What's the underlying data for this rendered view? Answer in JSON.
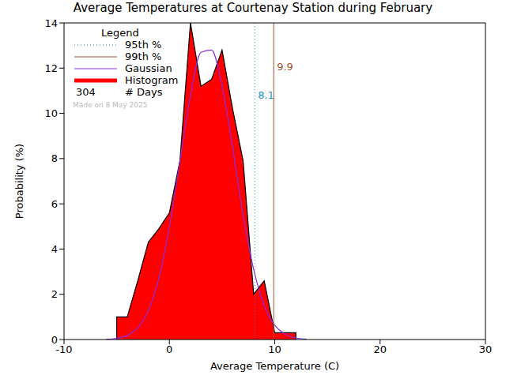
{
  "chart_data": {
    "type": "histogram",
    "title": "Average Temperatures at Courtenay Station during February",
    "x_label": "Average Temperature (C)",
    "y_label": "Probability (%)",
    "bins": [
      -5,
      -4,
      -3,
      -2,
      -1,
      0,
      1,
      2,
      3,
      4,
      5,
      6,
      7,
      8,
      9,
      10,
      11,
      12
    ],
    "counts": [
      1.0,
      1.0,
      2.6,
      4.3,
      4.9,
      5.6,
      7.9,
      14.0,
      11.2,
      11.5,
      12.8,
      10.2,
      7.9,
      2.0,
      2.6,
      0.3,
      0.3
    ],
    "name": "Histogram",
    "color": "#ff0000",
    "gaussian": {
      "name": "Gaussian",
      "color": "#8a2be2",
      "x": [
        -6,
        -5,
        -4,
        -3,
        -2,
        -1,
        0,
        1,
        2,
        3,
        4,
        5,
        6,
        7,
        8,
        9,
        10,
        11,
        12,
        13
      ],
      "values": [
        0.01,
        0.05,
        0.18,
        0.52,
        1.28,
        2.72,
        4.98,
        7.9,
        10.8,
        12.7,
        12.8,
        11.2,
        8.5,
        5.5,
        3.1,
        1.5,
        0.63,
        0.23,
        0.07,
        0.02
      ]
    },
    "percentiles": [
      {
        "name": "95th %",
        "value": 8.1,
        "color": "#1e90c8",
        "line_style": "dotted"
      },
      {
        "name": "99th %",
        "value": 9.9,
        "color": "#a0522d",
        "line_style": "solid"
      }
    ],
    "legend_title": "Legend",
    "days": 304,
    "days_label": "# Days",
    "note": "Made on 8 May 2025",
    "legend": "upper left",
    "xlim": [
      -10,
      30
    ],
    "xticks": [
      -10,
      0,
      10,
      20,
      30
    ],
    "ylim": [
      0,
      14
    ],
    "yticks": [
      0,
      2,
      4,
      6,
      8,
      10,
      12,
      14
    ]
  }
}
